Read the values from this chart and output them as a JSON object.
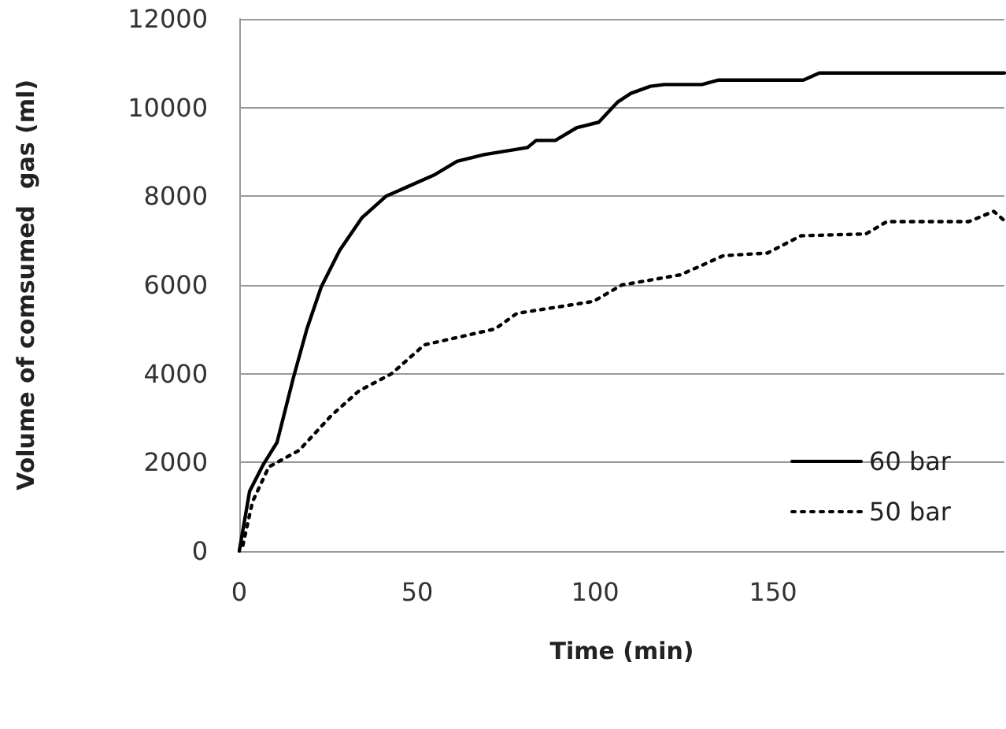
{
  "chart_data": {
    "type": "line",
    "xlabel": "Time (min)",
    "ylabel": "Volume of comsumed  gas (ml)",
    "xlim": [
      0,
      215
    ],
    "xticks": [
      0,
      50,
      100,
      150
    ],
    "ylim": [
      0,
      12000
    ],
    "yticks": [
      0,
      2000,
      4000,
      6000,
      8000,
      10000,
      12000
    ],
    "grid": "y",
    "legend": "bottom right",
    "marker": "none",
    "series": [
      {
        "name": "60 bar",
        "color": "#000000",
        "line_style": "solid",
        "x": [
          0,
          2.9,
          6.8,
          10.6,
          15.2,
          19,
          23,
          28.2,
          34.4,
          41.2,
          55,
          61.2,
          68.8,
          81,
          83.4,
          88.8,
          94.9,
          101,
          106.4,
          110,
          115.5,
          119.4,
          130,
          134.7,
          158.5,
          163,
          215
        ],
        "values": [
          0,
          1350,
          1960,
          2450,
          3910,
          5010,
          5950,
          6780,
          7510,
          8000,
          8490,
          8790,
          8940,
          9100,
          9260,
          9260,
          9550,
          9670,
          10130,
          10320,
          10480,
          10520,
          10520,
          10620,
          10620,
          10780,
          10780
        ]
      },
      {
        "name": "50 bar",
        "color": "#000000",
        "line_style": "dotted",
        "x": [
          1,
          3.7,
          8.3,
          16.8,
          25.9,
          33.6,
          42.8,
          52,
          71.9,
          78,
          99.5,
          107.5,
          124,
          136,
          148.4,
          157.8,
          176,
          182,
          205,
          212,
          215
        ],
        "values": [
          130,
          1110,
          1900,
          2270,
          3060,
          3610,
          4000,
          4650,
          5010,
          5360,
          5630,
          6000,
          6230,
          6660,
          6720,
          7110,
          7150,
          7430,
          7430,
          7660,
          7450
        ]
      }
    ]
  }
}
